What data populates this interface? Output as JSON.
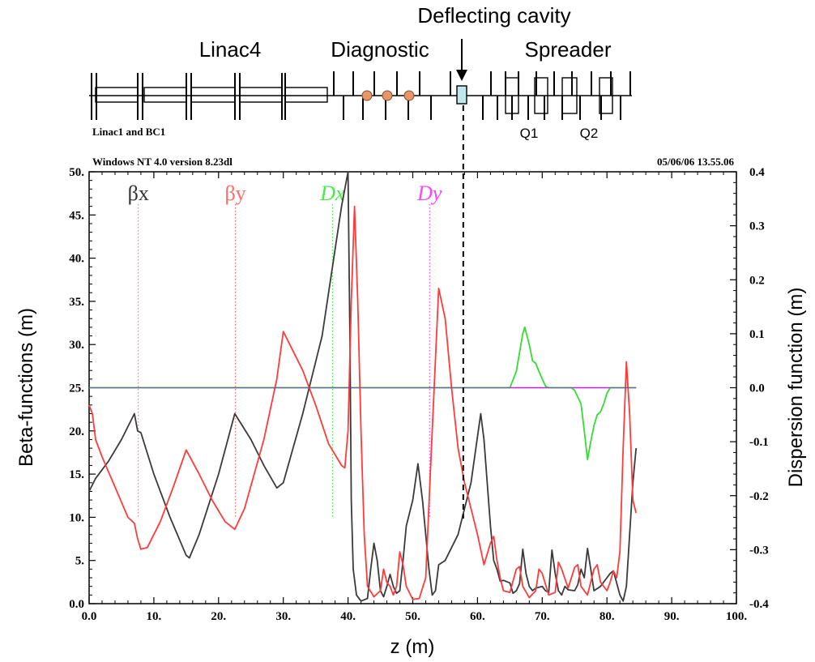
{
  "chart_data": {
    "type": "line",
    "beamline_labels": {
      "linac4": "Linac4",
      "diagnostic": "Diagnostic",
      "deflecting": "Deflecting cavity",
      "spreader": "Spreader",
      "q1": "Q1",
      "q2": "Q2",
      "linac1": "Linac1 and BC1"
    },
    "header_left": "Windows NT 4.0 version 8.23dl",
    "header_right": "05/06/06  13.55.06",
    "xlabel": "z (m)",
    "ylabel": "Beta-functions (m)",
    "y2label": "Dispersion function (m)",
    "xlim": [
      0,
      100
    ],
    "ylim": [
      0,
      50
    ],
    "y2lim": [
      -0.4,
      0.4
    ],
    "x_ticks": [
      "0.0",
      "10.",
      "20.",
      "30.",
      "40.",
      "50.",
      "60.",
      "70.",
      "80.",
      "90.",
      "100."
    ],
    "y_ticks": [
      "0.0",
      "5.",
      "10.",
      "15.",
      "20.",
      "25.",
      "30.",
      "35.",
      "40.",
      "45.",
      "50."
    ],
    "y2_ticks": [
      "-0.4",
      "-0.3",
      "-0.2",
      "-0.1",
      "0.0",
      "0.1",
      "0.2",
      "0.3",
      "0.4"
    ],
    "series": [
      {
        "name": "βx",
        "color": "#3a3a3a",
        "axis": "left",
        "points": [
          [
            0,
            13
          ],
          [
            1,
            14.5
          ],
          [
            3,
            16.5
          ],
          [
            5,
            19
          ],
          [
            7,
            22
          ],
          [
            7.5,
            20
          ],
          [
            8,
            19.8
          ],
          [
            10,
            15
          ],
          [
            12.5,
            10
          ],
          [
            15,
            5.6
          ],
          [
            15.5,
            5.3
          ],
          [
            17,
            8
          ],
          [
            20,
            15
          ],
          [
            22.5,
            22
          ],
          [
            25,
            19
          ],
          [
            27,
            16
          ],
          [
            29,
            13.4
          ],
          [
            30,
            14
          ],
          [
            33,
            22
          ],
          [
            36,
            31
          ],
          [
            39,
            46
          ],
          [
            40,
            50
          ],
          [
            40.3,
            30
          ],
          [
            40.5,
            12
          ],
          [
            40.8,
            4
          ],
          [
            41.3,
            1
          ],
          [
            42,
            0.3
          ],
          [
            43,
            0.6
          ],
          [
            43.5,
            4
          ],
          [
            44,
            7
          ],
          [
            44.5,
            5
          ],
          [
            45,
            1.5
          ],
          [
            45.5,
            0.8
          ],
          [
            46,
            2
          ],
          [
            46.5,
            3.4
          ],
          [
            47,
            2
          ],
          [
            47.5,
            1.2
          ],
          [
            48,
            1.5
          ],
          [
            48.5,
            5
          ],
          [
            49,
            9
          ],
          [
            50,
            12
          ],
          [
            50.8,
            16.2
          ],
          [
            51.5,
            12
          ],
          [
            52,
            8
          ],
          [
            52.5,
            4
          ],
          [
            53,
            1
          ],
          [
            53.5,
            1.5
          ],
          [
            54,
            4.5
          ],
          [
            55,
            5
          ],
          [
            57,
            8
          ],
          [
            59,
            14
          ],
          [
            60.5,
            22
          ],
          [
            61,
            19
          ],
          [
            61.5,
            14
          ],
          [
            62,
            9
          ],
          [
            62.5,
            5
          ],
          [
            63,
            4
          ],
          [
            63.5,
            2.6
          ],
          [
            64,
            2.7
          ],
          [
            65,
            2.4
          ],
          [
            65.5,
            1.2
          ],
          [
            66,
            1.5
          ],
          [
            66.5,
            2.3
          ],
          [
            67,
            6.3
          ],
          [
            67.5,
            3.5
          ],
          [
            68,
            2
          ],
          [
            68.5,
            1.5
          ],
          [
            69,
            1.8
          ],
          [
            70,
            2
          ],
          [
            70.5,
            1.5
          ],
          [
            71,
            1.3
          ],
          [
            71.5,
            6.2
          ],
          [
            72,
            3.5
          ],
          [
            72.5,
            1.5
          ],
          [
            73,
            1
          ],
          [
            73.5,
            2
          ],
          [
            74,
            1.6
          ],
          [
            75,
            1.5
          ],
          [
            75.5,
            2.2
          ],
          [
            76,
            4
          ],
          [
            76.5,
            3
          ],
          [
            77,
            6.4
          ],
          [
            77.5,
            4
          ],
          [
            78,
            1.5
          ],
          [
            79,
            2
          ],
          [
            80,
            3
          ],
          [
            80.5,
            3.5
          ],
          [
            81,
            3.8
          ],
          [
            82,
            1
          ],
          [
            82.5,
            0.3
          ],
          [
            83,
            2
          ],
          [
            83.5,
            8
          ],
          [
            84,
            14
          ],
          [
            84.5,
            18
          ]
        ]
      },
      {
        "name": "βy",
        "color": "#ff3b3b",
        "axis": "left",
        "points": [
          [
            0,
            23
          ],
          [
            0.5,
            22
          ],
          [
            1,
            19
          ],
          [
            2,
            17
          ],
          [
            4,
            13.5
          ],
          [
            6,
            10
          ],
          [
            7,
            9.3
          ],
          [
            7.5,
            7.5
          ],
          [
            8,
            6.3
          ],
          [
            9,
            6.5
          ],
          [
            11,
            9.5
          ],
          [
            13,
            13.5
          ],
          [
            15,
            17.8
          ],
          [
            17,
            15
          ],
          [
            19,
            12
          ],
          [
            21,
            9.5
          ],
          [
            22.5,
            8.6
          ],
          [
            24,
            11
          ],
          [
            27,
            19
          ],
          [
            29,
            26
          ],
          [
            30,
            31.5
          ],
          [
            31,
            30
          ],
          [
            33,
            27
          ],
          [
            35,
            23
          ],
          [
            37,
            18.5
          ],
          [
            39,
            16
          ],
          [
            39.5,
            15.7
          ],
          [
            40,
            20
          ],
          [
            40.5,
            35
          ],
          [
            41,
            46
          ],
          [
            41.5,
            35
          ],
          [
            42,
            20
          ],
          [
            42.5,
            8
          ],
          [
            43,
            2
          ],
          [
            44,
            0.8
          ],
          [
            45,
            1.5
          ],
          [
            45.5,
            4
          ],
          [
            46,
            2.5
          ],
          [
            46.5,
            2
          ],
          [
            47,
            1
          ],
          [
            47.5,
            2
          ],
          [
            48,
            6
          ],
          [
            48.5,
            4.5
          ],
          [
            49,
            2
          ],
          [
            50,
            0.5
          ],
          [
            51,
            0.6
          ],
          [
            52,
            3
          ],
          [
            53,
            20
          ],
          [
            54,
            36.5
          ],
          [
            55,
            33
          ],
          [
            56,
            25
          ],
          [
            57,
            18
          ],
          [
            58,
            14
          ],
          [
            59,
            11
          ],
          [
            60,
            8
          ],
          [
            61,
            4.5
          ],
          [
            62,
            7
          ],
          [
            62.5,
            7.8
          ],
          [
            63,
            5
          ],
          [
            63.5,
            3
          ],
          [
            64,
            1.5
          ],
          [
            65,
            1.3
          ],
          [
            66,
            4
          ],
          [
            66.5,
            4.3
          ],
          [
            67,
            2
          ],
          [
            68,
            0.7
          ],
          [
            69,
            1.5
          ],
          [
            69.5,
            4
          ],
          [
            70,
            3.5
          ],
          [
            71,
            1
          ],
          [
            72,
            1.3
          ],
          [
            72.5,
            4.8
          ],
          [
            73,
            4
          ],
          [
            74,
            1.8
          ],
          [
            75,
            4.2
          ],
          [
            75.5,
            4.5
          ],
          [
            76,
            2
          ],
          [
            77,
            1
          ],
          [
            78,
            4
          ],
          [
            78.5,
            4.5
          ],
          [
            79,
            2.5
          ],
          [
            80,
            1.5
          ],
          [
            80.5,
            2.5
          ],
          [
            81,
            3.8
          ],
          [
            81.5,
            3
          ],
          [
            82,
            6
          ],
          [
            82.5,
            18
          ],
          [
            83,
            28
          ],
          [
            83.5,
            22
          ],
          [
            84,
            12
          ],
          [
            84.5,
            10.5
          ]
        ]
      },
      {
        "name": "Dx",
        "color": "#33dd33",
        "axis": "right",
        "points": [
          [
            0,
            0
          ],
          [
            65,
            0
          ],
          [
            66,
            0.03
          ],
          [
            67,
            0.1
          ],
          [
            67.3,
            0.112
          ],
          [
            68,
            0.08
          ],
          [
            68.5,
            0.05
          ],
          [
            69,
            0.045
          ],
          [
            69.5,
            0.03
          ],
          [
            70.5,
            0.003
          ],
          [
            71,
            0
          ],
          [
            74.5,
            0
          ],
          [
            75,
            -0.005
          ],
          [
            76,
            -0.03
          ],
          [
            76.5,
            -0.08
          ],
          [
            77,
            -0.133
          ],
          [
            77.5,
            -0.1
          ],
          [
            78,
            -0.07
          ],
          [
            78.5,
            -0.05
          ],
          [
            79,
            -0.045
          ],
          [
            79.5,
            -0.03
          ],
          [
            80,
            -0.01
          ],
          [
            80.5,
            0
          ],
          [
            84.5,
            0
          ]
        ]
      },
      {
        "name": "Dy",
        "color": "#ff44ff",
        "axis": "right",
        "points": [
          [
            0,
            0
          ],
          [
            84.5,
            0
          ]
        ]
      }
    ],
    "annotation_markers": [
      {
        "label": "βx",
        "z": 7.6,
        "color": "#c090b0"
      },
      {
        "label": "βy",
        "z": 22.6,
        "color": "#ff6a6a"
      },
      {
        "label": "Dx",
        "z": 37.6,
        "color": "#44ee44"
      },
      {
        "label": "Dy",
        "z": 52.6,
        "color": "#ff44ff"
      }
    ],
    "deflecting_cavity_z": 57.8,
    "grid": false,
    "legend": "top"
  }
}
